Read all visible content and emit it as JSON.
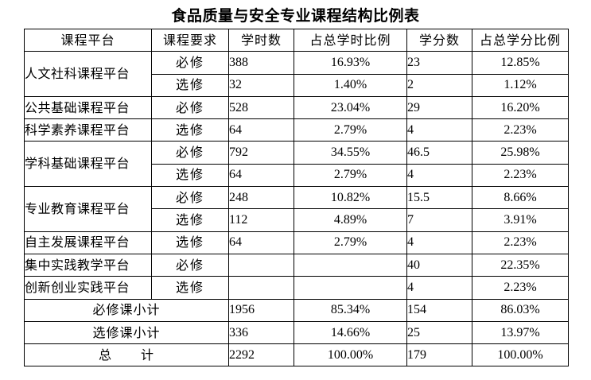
{
  "title": "食品质量与安全专业课程结构比例表",
  "headers": {
    "platform": "课程平台",
    "requirement": "课程要求",
    "hours": "学时数",
    "hours_pct": "占总学时比例",
    "credits": "学分数",
    "credits_pct": "占总学分比例"
  },
  "platforms": {
    "humanities": "人文社科课程平台",
    "public_basic": "公共基础课程平台",
    "science_literacy": "科学素养课程平台",
    "discipline_basic": "学科基础课程平台",
    "professional": "专业教育课程平台",
    "self_development": "自主发展课程平台",
    "practice": "集中实践教学平台",
    "innovation": "创新创业实践平台"
  },
  "rows": [
    {
      "type": "必修",
      "hours": "388",
      "hours_pct": "16.93%",
      "credits": "23",
      "credits_pct": "12.85%"
    },
    {
      "type": "选修",
      "hours": "32",
      "hours_pct": "1.40%",
      "credits": "2",
      "credits_pct": "1.12%"
    },
    {
      "type": "必修",
      "hours": "528",
      "hours_pct": "23.04%",
      "credits": "29",
      "credits_pct": "16.20%"
    },
    {
      "type": "选修",
      "hours": "64",
      "hours_pct": "2.79%",
      "credits": "4",
      "credits_pct": "2.23%"
    },
    {
      "type": "必修",
      "hours": "792",
      "hours_pct": "34.55%",
      "credits": "46.5",
      "credits_pct": "25.98%"
    },
    {
      "type": "选修",
      "hours": "64",
      "hours_pct": "2.79%",
      "credits": "4",
      "credits_pct": "2.23%"
    },
    {
      "type": "必修",
      "hours": "248",
      "hours_pct": "10.82%",
      "credits": "15.5",
      "credits_pct": "8.66%"
    },
    {
      "type": "选修",
      "hours": "112",
      "hours_pct": "4.89%",
      "credits": "7",
      "credits_pct": "3.91%"
    },
    {
      "type": "选修",
      "hours": "64",
      "hours_pct": "2.79%",
      "credits": "4",
      "credits_pct": "2.23%"
    },
    {
      "type": "必修",
      "hours": "",
      "hours_pct": "",
      "credits": "40",
      "credits_pct": "22.35%"
    },
    {
      "type": "选修",
      "hours": "",
      "hours_pct": "",
      "credits": "4",
      "credits_pct": "2.23%"
    }
  ],
  "summary": [
    {
      "label": "必修课小计",
      "hours": "1956",
      "hours_pct": "85.34%",
      "credits": "154",
      "credits_pct": "86.03%"
    },
    {
      "label": "选修课小计",
      "hours": "336",
      "hours_pct": "14.66%",
      "credits": "25",
      "credits_pct": "13.97%"
    }
  ],
  "total": {
    "label_a": "总",
    "label_b": "计",
    "hours": "2292",
    "hours_pct": "100.00%",
    "credits": "179",
    "credits_pct": "100.00%"
  }
}
